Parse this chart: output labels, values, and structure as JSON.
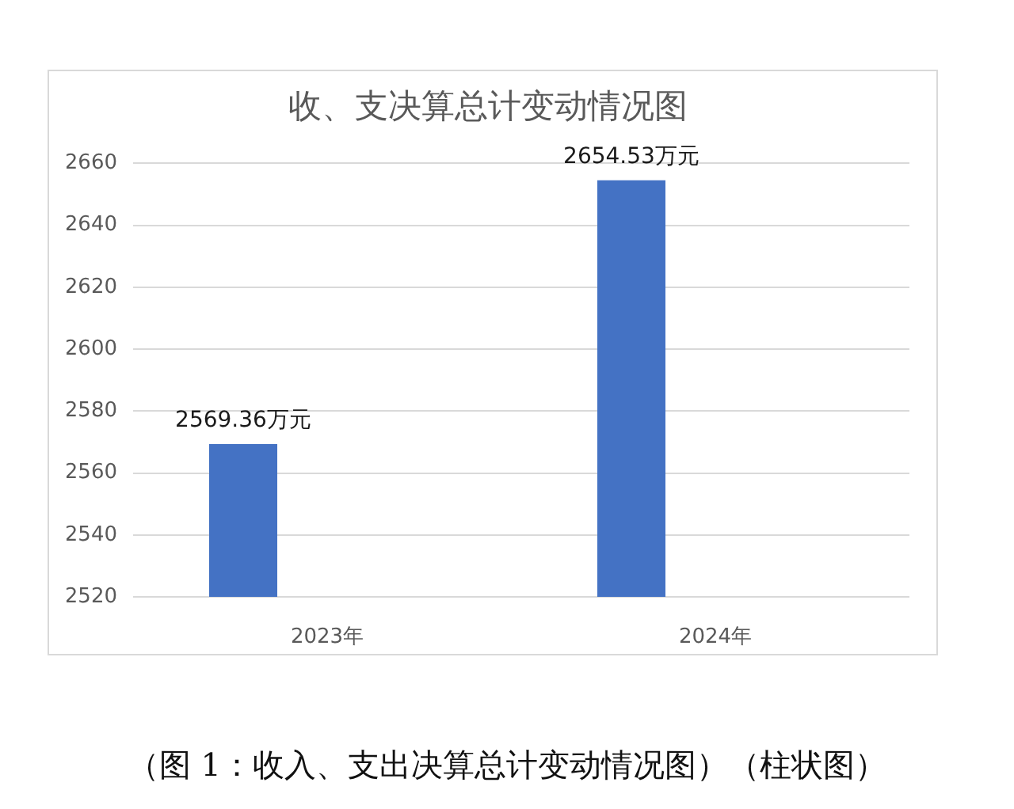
{
  "chart_data": {
    "type": "bar",
    "title": "收、支决算总计变动情况图",
    "categories": [
      "2023年",
      "2024年"
    ],
    "values": [
      2569.36,
      2654.53
    ],
    "color": "#4472c4",
    "value_labels": [
      "2569.36万元",
      "2654.53万元"
    ],
    "ylim": [
      2520,
      2660
    ],
    "yticks": [
      2520,
      2540,
      2560,
      2580,
      2600,
      2620,
      2640,
      2660
    ],
    "grid": "y",
    "annotations": [
      "（图 1：收入、支出决算总计变动情况图）（柱状图）"
    ]
  }
}
